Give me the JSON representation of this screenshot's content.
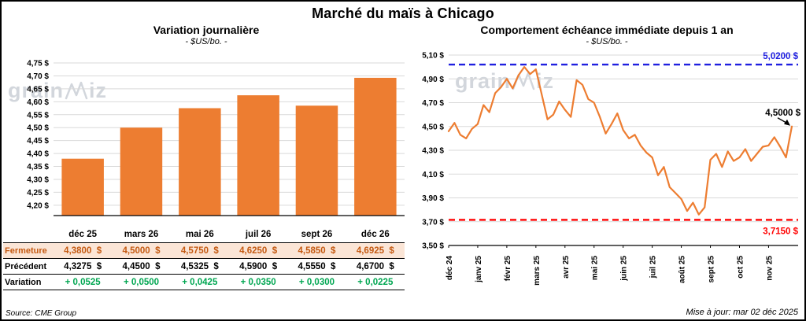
{
  "page": {
    "title": "Marché du maïs à Chicago",
    "source": "Source: CME Group",
    "updated": "Mise à jour: mar 02 déc 2025",
    "watermark": {
      "left": "grain",
      "right": "iz"
    }
  },
  "table": {
    "row_labels": [
      "Fermeture",
      "Précédent",
      "Variation"
    ],
    "fermeture": [
      "4,3800  $",
      "4,5000  $",
      "4,5750  $",
      "4,6250  $",
      "4,5850  $",
      "4,6925  $"
    ],
    "precedent": [
      "4,3275  $",
      "4,4500  $",
      "4,5325  $",
      "4,5900  $",
      "4,5550  $",
      "4,6700  $"
    ],
    "variation": [
      "+ 0,0525",
      "+ 0,0500",
      "+ 0,0425",
      "+ 0,0350",
      "+ 0,0300",
      "+ 0,0225"
    ]
  },
  "colors": {
    "bar": "#ED7D31",
    "line": "#ED7D31",
    "grid": "#D9D9D9",
    "axis": "#000000",
    "fermeture_bg": "#FBE5D6",
    "fermeture_text": "#C45911",
    "variation_text": "#00A651",
    "hline_blue": "#2020E0",
    "hline_red": "#FF0000"
  },
  "chart_data": [
    {
      "type": "bar",
      "title": "Variation journalière",
      "subtitle": "- $US/bo. -",
      "unit": "$US/bo.",
      "categories": [
        "déc 25",
        "mars 26",
        "mai 26",
        "juil 26",
        "sept 26",
        "déc 26"
      ],
      "values": [
        4.38,
        4.5,
        4.575,
        4.625,
        4.585,
        4.6925
      ],
      "ylim": [
        4.16,
        4.75
      ],
      "yticks": [
        4.2,
        4.25,
        4.3,
        4.35,
        4.4,
        4.45,
        4.5,
        4.55,
        4.6,
        4.65,
        4.7,
        4.75
      ],
      "bar_color": "#ED7D31",
      "grid": true,
      "legend": "none"
    },
    {
      "type": "line",
      "title": "Comportement échéance immédiate depuis 1 an",
      "subtitle": "- $US/bo. -",
      "unit": "$US/bo.",
      "x_ticks": [
        "déc 24",
        "janv 25",
        "févr 25",
        "mars 25",
        "avr 25",
        "mai 25",
        "juin 25",
        "juil 25",
        "août 25",
        "sept 25",
        "oct 25",
        "nov 25"
      ],
      "ylim": [
        3.5,
        5.1
      ],
      "yticks": [
        3.5,
        3.7,
        3.9,
        4.1,
        4.3,
        4.5,
        4.7,
        4.9,
        5.1
      ],
      "grid": true,
      "legend": "none",
      "hlines": [
        {
          "value": 5.02,
          "label": "5,0200 $",
          "color": "#2020E0",
          "side": "above"
        },
        {
          "value": 3.715,
          "label": "3,7150 $",
          "color": "#FF0000",
          "side": "below"
        }
      ],
      "last_value": 4.5,
      "last_label": "4,5000 $",
      "series": [
        {
          "name": "échéance immédiate",
          "color": "#ED7D31",
          "values": [
            4.46,
            4.53,
            4.43,
            4.4,
            4.48,
            4.52,
            4.68,
            4.62,
            4.78,
            4.83,
            4.9,
            4.82,
            4.93,
            5.0,
            4.94,
            4.98,
            4.77,
            4.56,
            4.6,
            4.71,
            4.64,
            4.58,
            4.89,
            4.85,
            4.73,
            4.7,
            4.58,
            4.44,
            4.52,
            4.61,
            4.47,
            4.4,
            4.43,
            4.34,
            4.28,
            4.24,
            4.09,
            4.16,
            3.99,
            3.94,
            3.89,
            3.79,
            3.86,
            3.76,
            3.82,
            4.22,
            4.27,
            4.16,
            4.29,
            4.21,
            4.24,
            4.31,
            4.21,
            4.27,
            4.33,
            4.34,
            4.41,
            4.33,
            4.24,
            4.5
          ]
        }
      ]
    }
  ]
}
